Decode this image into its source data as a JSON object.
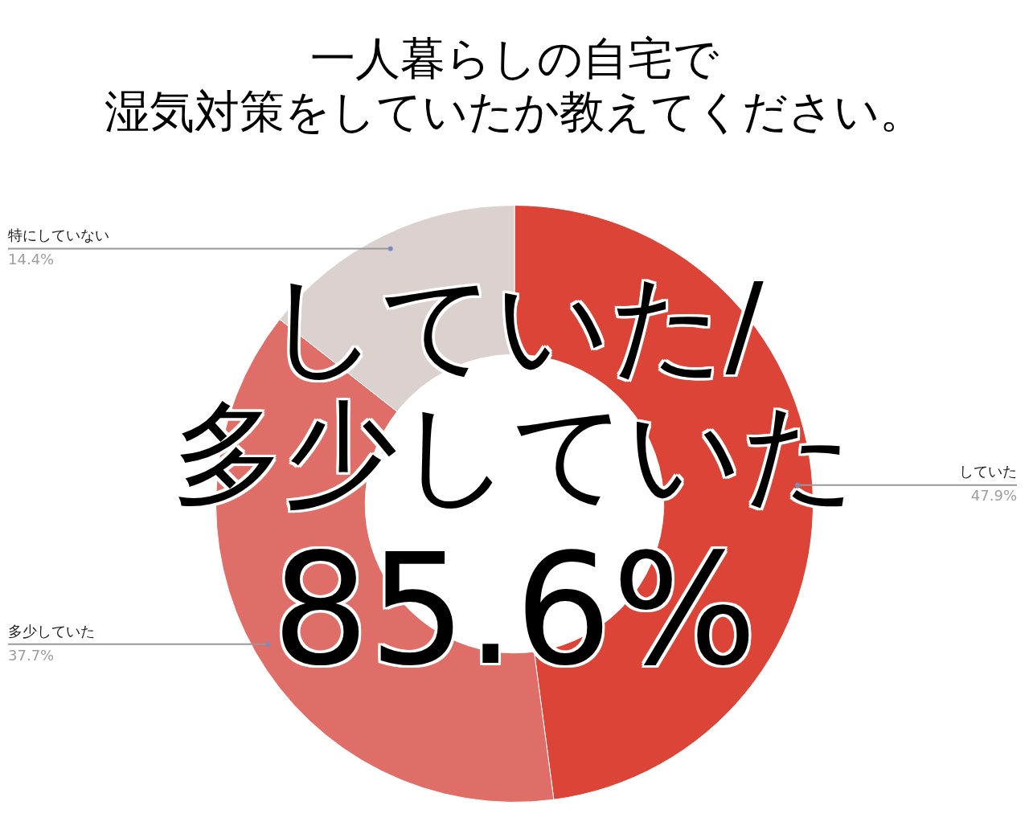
{
  "chart_data": {
    "type": "donut",
    "title": "一人暮らしの自宅で",
    "subtitle": "湿気対策をしていたか教えてください。",
    "categories": [
      "していた",
      "多少していた",
      "特にしていない"
    ],
    "values": [
      47.9,
      37.7,
      14.4
    ],
    "colors": [
      "#db4437",
      "#df6e68",
      "#dbd1cf"
    ],
    "value_labels": [
      "47.9%",
      "37.7%",
      "14.4%"
    ],
    "legend": false,
    "annotations": [
      "していた/\n多少していた\n85.6%"
    ]
  }
}
